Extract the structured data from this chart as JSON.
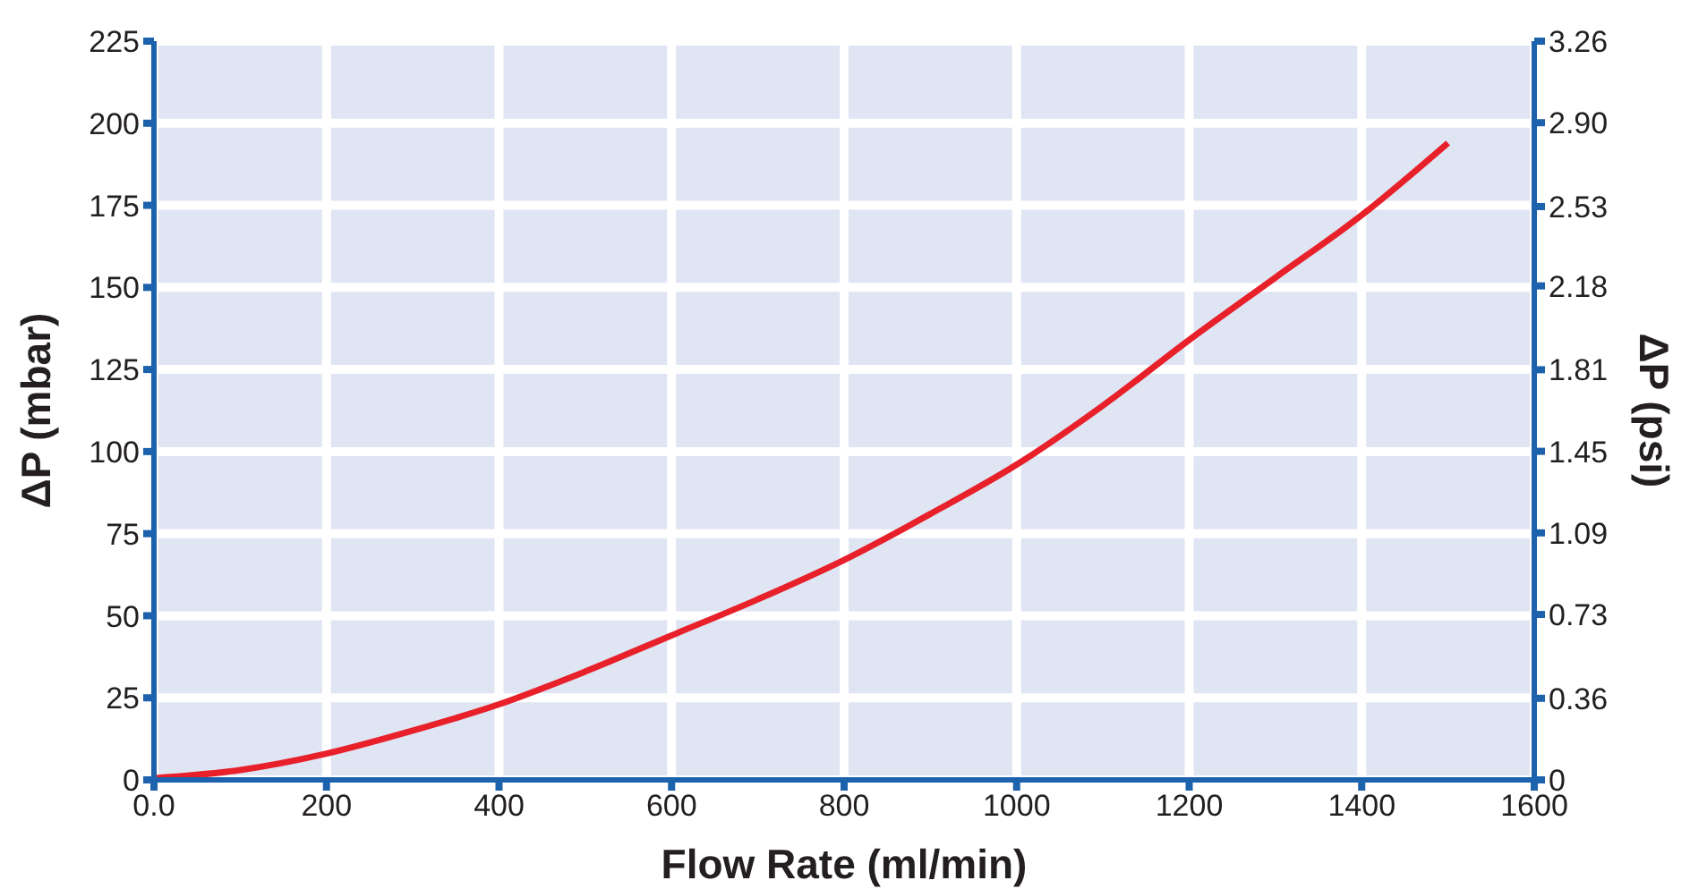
{
  "chart_data": {
    "type": "line",
    "xlabel": "Flow Rate (ml/min)",
    "ylabel": "ΔP (mbar)",
    "y2label": "ΔP (psi)",
    "x": [
      0,
      100,
      200,
      300,
      400,
      500,
      600,
      700,
      800,
      900,
      1000,
      1100,
      1200,
      1300,
      1400,
      1500
    ],
    "series": [
      {
        "color": "#e8202a",
        "values": [
          0.5,
          3,
          8,
          15,
          23,
          33,
          44,
          55,
          67,
          81,
          96,
          114,
          134,
          153,
          172,
          194
        ]
      }
    ],
    "xlim": [
      0,
      1600
    ],
    "xticks": [
      {
        "value": 0,
        "label": "0.0"
      },
      200,
      400,
      600,
      800,
      1000,
      1200,
      1400,
      1600
    ],
    "ylim": [
      0,
      225
    ],
    "yticks": [
      0,
      25,
      50,
      75,
      100,
      125,
      150,
      175,
      200,
      225
    ],
    "y2lim": [
      0,
      3.26
    ],
    "y2ticks": [
      0,
      0.36,
      0.73,
      1.09,
      1.45,
      1.81,
      2.18,
      2.53,
      {
        "value": 2.9,
        "label": "2.90"
      },
      3.26
    ],
    "grid": true,
    "marker": "none",
    "line_style": "solid"
  }
}
